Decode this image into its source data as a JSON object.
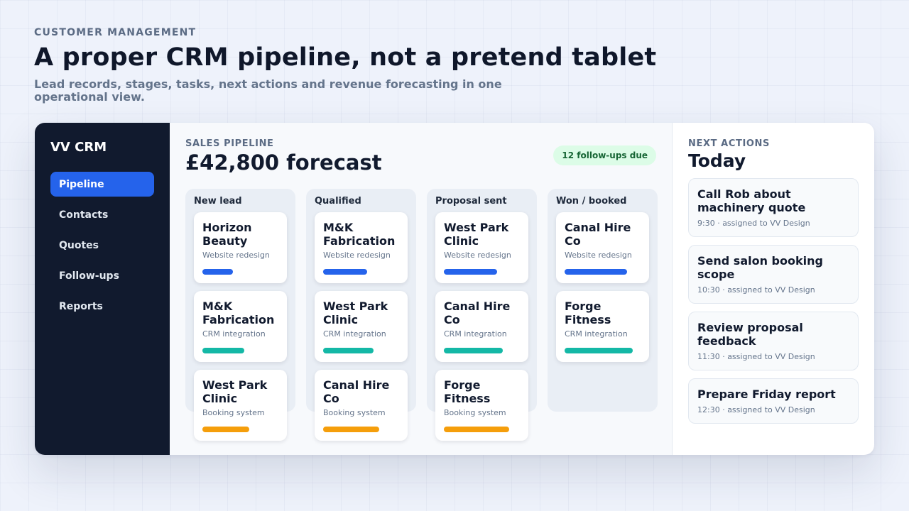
{
  "hero": {
    "eyebrow": "CUSTOMER MANAGEMENT",
    "headline": "A proper CRM pipeline, not a pretend tablet",
    "subhead": "Lead records, stages, tasks, next actions and revenue forecasting in one operational view."
  },
  "sidebar": {
    "brand": "VV CRM",
    "items": [
      {
        "label": "Pipeline",
        "active": true
      },
      {
        "label": "Contacts",
        "active": false
      },
      {
        "label": "Quotes",
        "active": false
      },
      {
        "label": "Follow-ups",
        "active": false
      },
      {
        "label": "Reports",
        "active": false
      }
    ]
  },
  "pipeline": {
    "section_label": "SALES PIPELINE",
    "forecast": "£42,800 forecast",
    "followups_badge": "12 follow-ups due",
    "columns": [
      {
        "title": "New lead",
        "cards": [
          {
            "title": "Horizon Beauty",
            "subtitle": "Website redesign",
            "progress": 0.4,
            "color": "#2563eb"
          },
          {
            "title": "M&K Fabrication",
            "subtitle": "CRM integration",
            "progress": 0.55,
            "color": "#14b8a6"
          },
          {
            "title": "West Park Clinic",
            "subtitle": "Booking system",
            "progress": 0.62,
            "color": "#f59e0b"
          }
        ]
      },
      {
        "title": "Qualified",
        "cards": [
          {
            "title": "M&K Fabrication",
            "subtitle": "Website redesign",
            "progress": 0.58,
            "color": "#2563eb"
          },
          {
            "title": "West Park Clinic",
            "subtitle": "CRM integration",
            "progress": 0.66,
            "color": "#14b8a6"
          },
          {
            "title": "Canal Hire Co",
            "subtitle": "Booking system",
            "progress": 0.74,
            "color": "#f59e0b"
          }
        ]
      },
      {
        "title": "Proposal sent",
        "cards": [
          {
            "title": "West Park Clinic",
            "subtitle": "Website redesign",
            "progress": 0.7,
            "color": "#2563eb"
          },
          {
            "title": "Canal Hire Co",
            "subtitle": "CRM integration",
            "progress": 0.78,
            "color": "#14b8a6"
          },
          {
            "title": "Forge Fitness",
            "subtitle": "Booking system",
            "progress": 0.86,
            "color": "#f59e0b"
          }
        ]
      },
      {
        "title": "Won / booked",
        "cards": [
          {
            "title": "Canal Hire Co",
            "subtitle": "Website redesign",
            "progress": 0.82,
            "color": "#2563eb"
          },
          {
            "title": "Forge Fitness",
            "subtitle": "CRM integration",
            "progress": 0.9,
            "color": "#14b8a6"
          }
        ]
      }
    ]
  },
  "actions": {
    "section_label": "NEXT ACTIONS",
    "heading": "Today",
    "items": [
      {
        "title": "Call Rob about machinery quote",
        "meta": "9:30 · assigned to VV Design"
      },
      {
        "title": "Send salon booking scope",
        "meta": "10:30 · assigned to VV Design"
      },
      {
        "title": "Review proposal feedback",
        "meta": "11:30 · assigned to VV Design"
      },
      {
        "title": "Prepare Friday report",
        "meta": "12:30 · assigned to VV Design"
      }
    ]
  }
}
